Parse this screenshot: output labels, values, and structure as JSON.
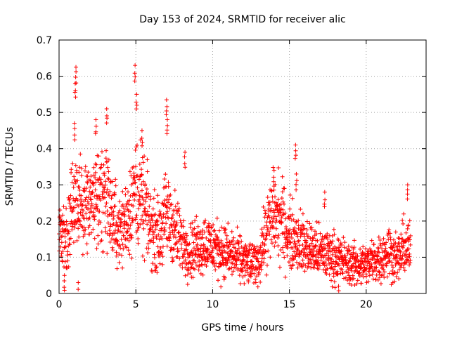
{
  "chart_data": {
    "type": "scatter",
    "title": "Day 153 of 2024, SRMTID for receiver alic",
    "xlabel": "GPS time / hours",
    "ylabel": "SRMTID / TECUs",
    "xlim": [
      0,
      23.9
    ],
    "ylim": [
      0,
      0.7
    ],
    "x_ticks": [
      0,
      5,
      10,
      15,
      20
    ],
    "x_tick_labels": [
      "0",
      "5",
      "10",
      "15",
      "20"
    ],
    "y_ticks": [
      0,
      0.1,
      0.2,
      0.3,
      0.4,
      0.5,
      0.6,
      0.7
    ],
    "y_tick_labels": [
      "0",
      "0.1",
      "0.2",
      "0.3",
      "0.4",
      "0.5",
      "0.6",
      "0.7"
    ],
    "grid": true,
    "marker": "+",
    "series": [
      {
        "name": "SRMTID",
        "color": "#ff0000",
        "trend": {
          "x": [
            0,
            0.3,
            0.6,
            0.9,
            1.2,
            1.6,
            2.0,
            2.5,
            3.0,
            3.5,
            4.0,
            4.5,
            5.0,
            5.5,
            6.0,
            6.5,
            7.0,
            7.5,
            8.0,
            8.5,
            9.0,
            9.5,
            10.0,
            10.5,
            11.0,
            11.5,
            12.0,
            12.5,
            13.0,
            13.5,
            14.0,
            14.5,
            15.0,
            15.5,
            16.0,
            16.5,
            17.0,
            17.5,
            18.0,
            18.5,
            19.0,
            19.5,
            20.0,
            20.5,
            21.0,
            21.5,
            22.0,
            22.5,
            22.9
          ],
          "y": [
            0.17,
            0.15,
            0.16,
            0.28,
            0.22,
            0.25,
            0.24,
            0.27,
            0.3,
            0.2,
            0.17,
            0.22,
            0.29,
            0.24,
            0.18,
            0.16,
            0.22,
            0.18,
            0.14,
            0.12,
            0.13,
            0.14,
            0.13,
            0.12,
            0.11,
            0.1,
            0.09,
            0.08,
            0.09,
            0.17,
            0.22,
            0.2,
            0.16,
            0.15,
            0.13,
            0.12,
            0.11,
            0.11,
            0.1,
            0.09,
            0.08,
            0.08,
            0.08,
            0.09,
            0.1,
            0.12,
            0.09,
            0.13,
            0.12
          ]
        },
        "spikes": [
          {
            "x": 1.1,
            "y": 0.625
          },
          {
            "x": 1.05,
            "y": 0.58
          },
          {
            "x": 1.0,
            "y": 0.47
          },
          {
            "x": 2.4,
            "y": 0.48
          },
          {
            "x": 3.1,
            "y": 0.51
          },
          {
            "x": 4.95,
            "y": 0.63
          },
          {
            "x": 5.05,
            "y": 0.55
          },
          {
            "x": 5.4,
            "y": 0.45
          },
          {
            "x": 7.0,
            "y": 0.535
          },
          {
            "x": 7.05,
            "y": 0.48
          },
          {
            "x": 8.2,
            "y": 0.39
          },
          {
            "x": 14.0,
            "y": 0.34
          },
          {
            "x": 15.4,
            "y": 0.41
          },
          {
            "x": 15.45,
            "y": 0.33
          },
          {
            "x": 17.3,
            "y": 0.28
          },
          {
            "x": 22.7,
            "y": 0.3
          },
          {
            "x": 0.35,
            "y": 0.05
          },
          {
            "x": 1.25,
            "y": 0.03
          },
          {
            "x": 18.2,
            "y": 0.02
          }
        ]
      }
    ]
  }
}
